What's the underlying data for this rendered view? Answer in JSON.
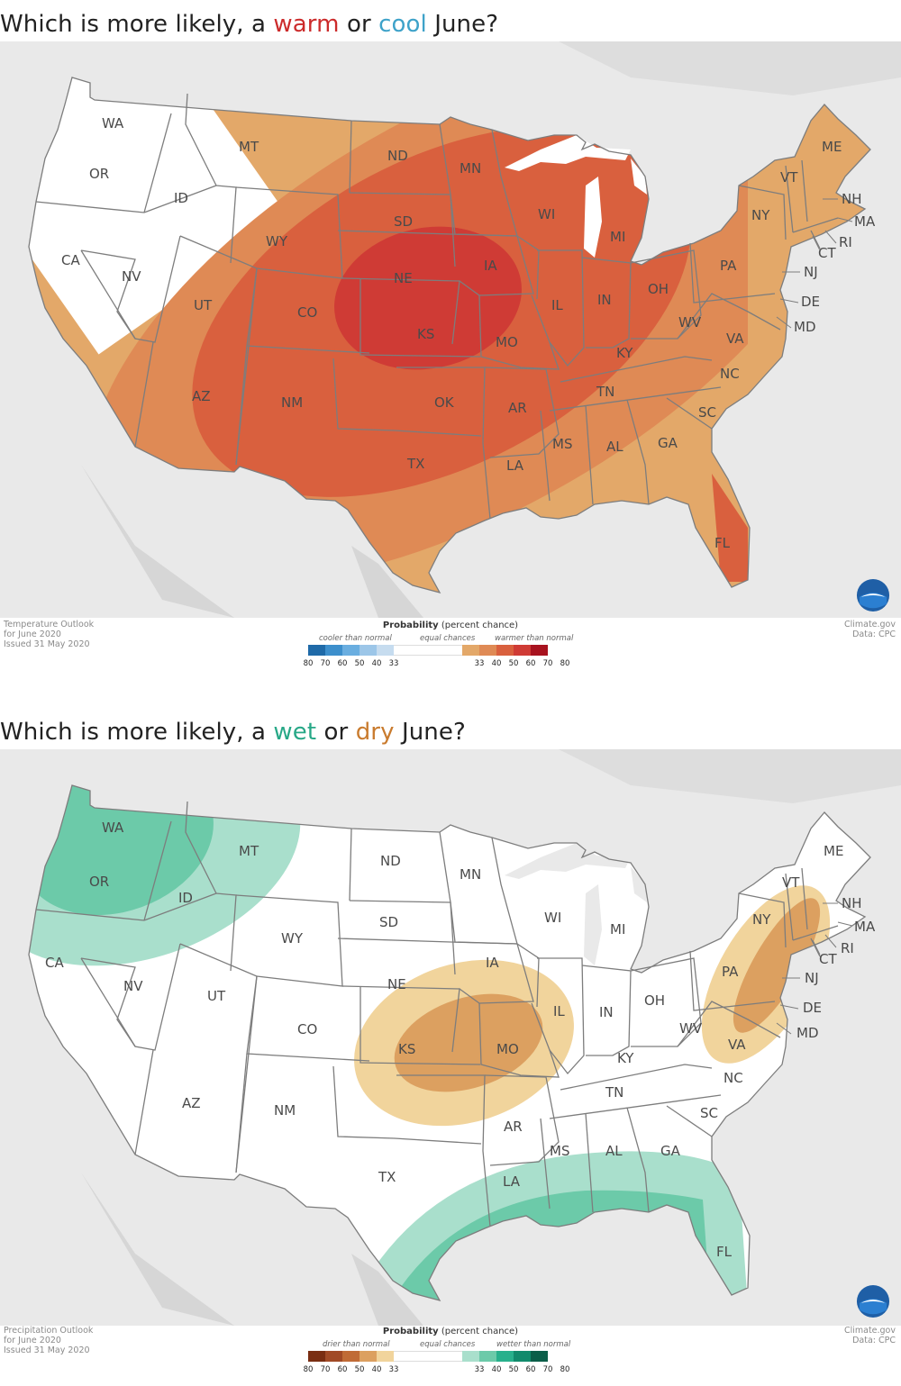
{
  "panels": [
    {
      "id": "temperature",
      "heading": {
        "pre": "Which is more likely, a ",
        "word1": "warm",
        "mid": " or ",
        "word2": "cool",
        "post": " June?"
      },
      "colors": {
        "word1": "#cc2b2b",
        "word2": "#3ea2c9"
      },
      "meta_left": [
        "Temperature Outlook",
        "for June 2020",
        "Issued 31 May 2020"
      ],
      "meta_right": [
        "Climate.gov",
        "Data: CPC"
      ],
      "legend": {
        "title_bold": "Probability",
        "title_rest": " (percent chance)",
        "left_label": "cooler than normal",
        "mid_label": "equal chances",
        "right_label": "warmer than normal",
        "left_colors": [
          "#1f6aa8",
          "#3d8fcc",
          "#6aaee0",
          "#9cc6e8",
          "#c6dcef"
        ],
        "right_colors": [
          "#e3a869",
          "#df8a55",
          "#d9603e",
          "#cf3b35",
          "#a8131f"
        ],
        "ticks": [
          "80",
          "70",
          "60",
          "50",
          "40",
          "33",
          "33",
          "40",
          "50",
          "60",
          "70",
          "80"
        ]
      }
    },
    {
      "id": "precipitation",
      "heading": {
        "pre": "Which is more likely, a ",
        "word1": "wet",
        "mid": " or ",
        "word2": "dry",
        "post": " June?"
      },
      "colors": {
        "word1": "#27a887",
        "word2": "#c97b2e"
      },
      "meta_left": [
        "Precipitation Outlook",
        "for June 2020",
        "Issued 31 May 2020"
      ],
      "meta_right": [
        "Climate.gov",
        "Data: CPC"
      ],
      "legend": {
        "title_bold": "Probability",
        "title_rest": " (percent chance)",
        "left_label": "drier than normal",
        "mid_label": "equal chances",
        "right_label": "wetter than normal",
        "left_colors": [
          "#7a2e12",
          "#a14a26",
          "#c06b36",
          "#dca060",
          "#f1d49c"
        ],
        "right_colors": [
          "#a9dfcc",
          "#6ccaa9",
          "#28b08c",
          "#118a6c",
          "#0b5e49"
        ],
        "ticks": [
          "80",
          "70",
          "60",
          "50",
          "40",
          "33",
          "33",
          "40",
          "50",
          "60",
          "70",
          "80"
        ]
      }
    }
  ],
  "states": [
    "WA",
    "OR",
    "CA",
    "ID",
    "NV",
    "MT",
    "WY",
    "UT",
    "AZ",
    "CO",
    "NM",
    "ND",
    "SD",
    "NE",
    "KS",
    "OK",
    "TX",
    "MN",
    "IA",
    "MO",
    "AR",
    "LA",
    "WI",
    "IL",
    "MI",
    "IN",
    "KY",
    "TN",
    "MS",
    "AL",
    "GA",
    "FL",
    "SC",
    "NC",
    "VA",
    "WV",
    "OH",
    "PA",
    "NY",
    "ME",
    "VT",
    "NH",
    "MA",
    "RI",
    "CT",
    "NJ",
    "DE",
    "MD"
  ],
  "logo_text": "NOAA"
}
